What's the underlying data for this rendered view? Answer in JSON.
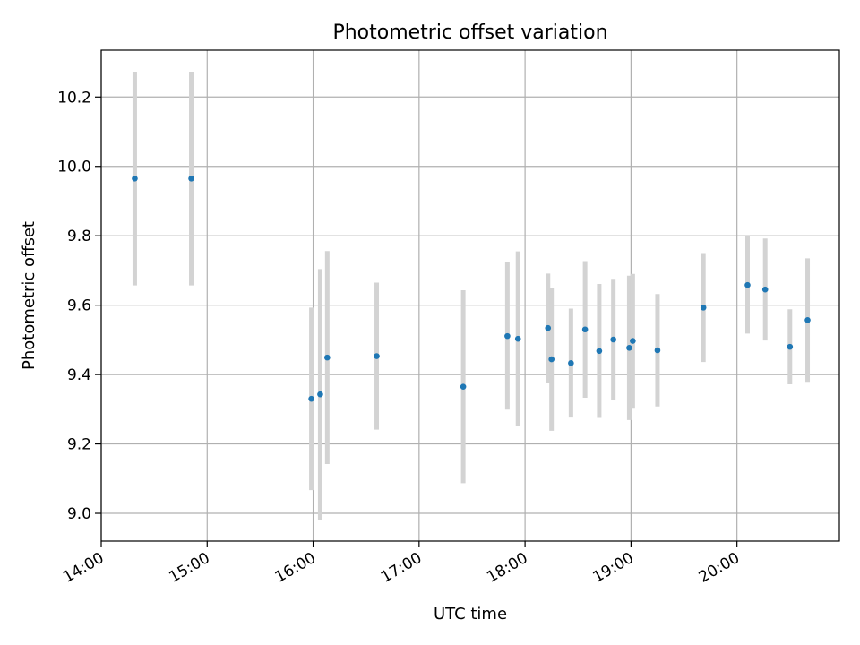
{
  "chart_data": {
    "type": "scatter",
    "title": "Photometric offset variation",
    "xlabel": "UTC time",
    "ylabel": "Photometric offset",
    "x_ticks": [
      "14:00",
      "15:00",
      "16:00",
      "17:00",
      "18:00",
      "19:00",
      "20:00"
    ],
    "y_ticks": [
      "9.0",
      "9.2",
      "9.4",
      "9.6",
      "9.8",
      "10.0",
      "10.2"
    ],
    "xlim": [
      "14:00",
      "20:58"
    ],
    "ylim": [
      8.92,
      10.335
    ],
    "grid": true,
    "errorbar_color": "#d3d3d3",
    "marker_color": "#1f77b4",
    "points": [
      {
        "x": "14:19",
        "y": 9.965,
        "err": 0.308
      },
      {
        "x": "14:51",
        "y": 9.965,
        "err": 0.308
      },
      {
        "x": "15:59",
        "y": 9.33,
        "err": 0.263
      },
      {
        "x": "16:04",
        "y": 9.343,
        "err": 0.361
      },
      {
        "x": "16:08",
        "y": 9.449,
        "err": 0.307
      },
      {
        "x": "16:36",
        "y": 9.453,
        "err": 0.212
      },
      {
        "x": "17:25",
        "y": 9.365,
        "err": 0.278
      },
      {
        "x": "17:50",
        "y": 9.511,
        "err": 0.212
      },
      {
        "x": "17:56",
        "y": 9.503,
        "err": 0.252
      },
      {
        "x": "18:13",
        "y": 9.534,
        "err": 0.157
      },
      {
        "x": "18:15",
        "y": 9.444,
        "err": 0.206
      },
      {
        "x": "18:26",
        "y": 9.433,
        "err": 0.157
      },
      {
        "x": "18:34",
        "y": 9.53,
        "err": 0.197
      },
      {
        "x": "18:42",
        "y": 9.468,
        "err": 0.193
      },
      {
        "x": "18:50",
        "y": 9.501,
        "err": 0.175
      },
      {
        "x": "18:59",
        "y": 9.477,
        "err": 0.208
      },
      {
        "x": "19:01",
        "y": 9.497,
        "err": 0.193
      },
      {
        "x": "19:15",
        "y": 9.47,
        "err": 0.162
      },
      {
        "x": "19:41",
        "y": 9.593,
        "err": 0.157
      },
      {
        "x": "20:06",
        "y": 9.658,
        "err": 0.14
      },
      {
        "x": "20:16",
        "y": 9.645,
        "err": 0.147
      },
      {
        "x": "20:30",
        "y": 9.48,
        "err": 0.108
      },
      {
        "x": "20:40",
        "y": 9.557,
        "err": 0.178
      }
    ]
  }
}
